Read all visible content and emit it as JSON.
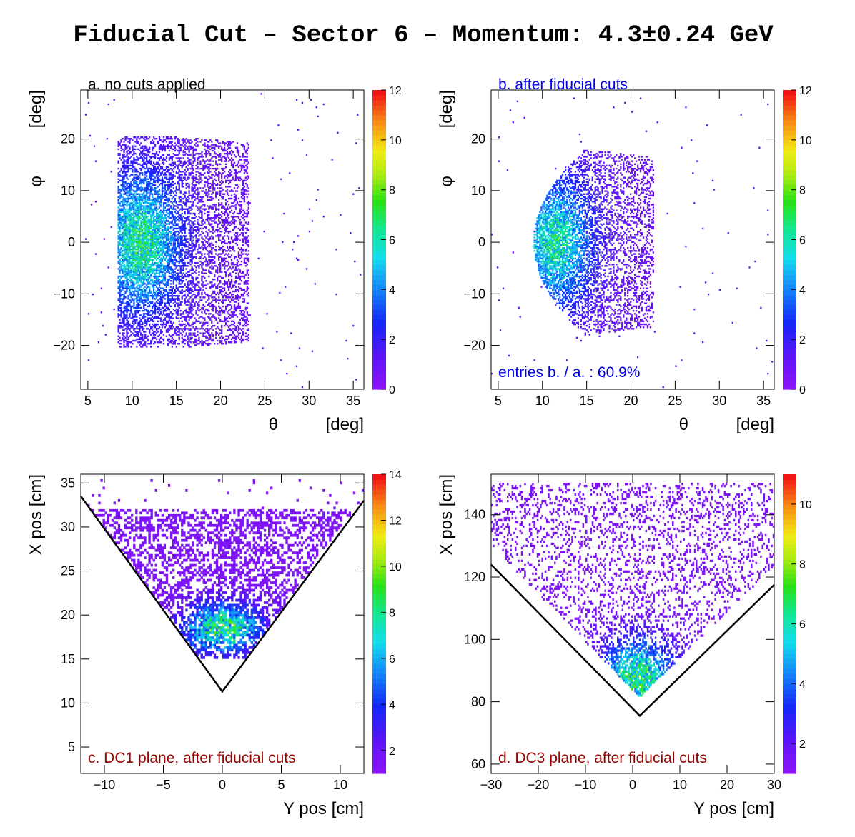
{
  "figure": {
    "title": "Fiducial Cut – Sector 6 – Momentum: 4.3±0.24 GeV"
  },
  "colors": {
    "blue_text": "#0000ee",
    "red_text": "#990000",
    "cut_line": "#000000",
    "palette_low": "#8a10f8",
    "palette_high": "#f01010"
  },
  "chart_data": [
    {
      "id": "a",
      "type": "heatmap",
      "annotation": "a. no cuts applied",
      "annotation_color": "black",
      "xlabel": "θ          [deg]",
      "ylabel": "φ          [deg]",
      "xlim": [
        4.2,
        36.2
      ],
      "ylim": [
        -28.5,
        29.5
      ],
      "xticks": [
        5,
        10,
        15,
        20,
        25,
        30,
        35
      ],
      "yticks": [
        -20,
        -10,
        0,
        10,
        20
      ],
      "colorbar": {
        "min": 0,
        "max": 12,
        "ticks": [
          0,
          2,
          4,
          6,
          8,
          10,
          12
        ]
      },
      "distribution": "theta 8.5-23 deg, phi -22 to +22 deg, peak near theta 11 deg, phi 0 deg"
    },
    {
      "id": "b",
      "type": "heatmap",
      "annotation": "b. after fiducial cuts",
      "annotation_color": "blue",
      "annotation2": "entries b. / a. : 60.9%",
      "xlabel": "θ          [deg]",
      "ylabel": "φ          [deg]",
      "xlim": [
        4.2,
        36.2
      ],
      "ylim": [
        -28.5,
        29.5
      ],
      "xticks": [
        5,
        10,
        15,
        20,
        25,
        30,
        35
      ],
      "yticks": [
        -20,
        -10,
        0,
        10,
        20
      ],
      "colorbar": {
        "min": 0,
        "max": 12,
        "ticks": [
          0,
          2,
          4,
          6,
          8,
          10,
          12
        ]
      },
      "entries_ratio_percent": 60.9
    },
    {
      "id": "c",
      "type": "heatmap",
      "annotation": "c. DC1 plane, after fiducial cuts",
      "annotation_color": "red",
      "xlabel": "Y pos [cm]",
      "ylabel": "X pos [cm]",
      "xlim": [
        -12,
        12
      ],
      "ylim": [
        2,
        36
      ],
      "xticks": [
        -10,
        -5,
        0,
        5,
        10
      ],
      "yticks": [
        5,
        10,
        15,
        20,
        25,
        30,
        35
      ],
      "colorbar": {
        "min": 1,
        "max": 14,
        "ticks": [
          2,
          4,
          6,
          8,
          10,
          12,
          14
        ]
      },
      "cut_line": {
        "x": [
          -12,
          0,
          12
        ],
        "y": [
          33.5,
          11.3,
          33.0
        ]
      }
    },
    {
      "id": "d",
      "type": "heatmap",
      "annotation": "d. DC3 plane, after fiducial cuts",
      "annotation_color": "red",
      "xlabel": "Y pos [cm]",
      "ylabel": "X pos [cm]",
      "xlim": [
        -30,
        30
      ],
      "ylim": [
        57,
        153
      ],
      "xticks": [
        -30,
        -20,
        -10,
        0,
        10,
        20,
        30
      ],
      "yticks": [
        60,
        80,
        100,
        120,
        140
      ],
      "colorbar": {
        "min": 1,
        "max": 11,
        "ticks": [
          2,
          4,
          6,
          8,
          10
        ]
      },
      "cut_line": {
        "x": [
          -30,
          1.5,
          30
        ],
        "y": [
          124,
          75.5,
          117.5
        ]
      }
    }
  ]
}
